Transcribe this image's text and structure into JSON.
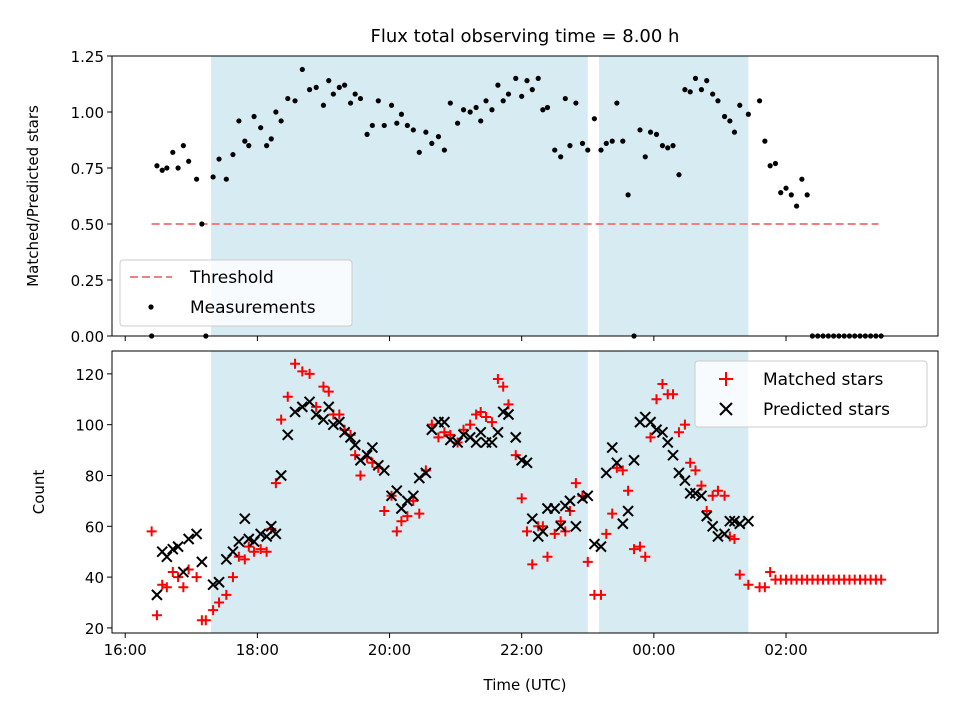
{
  "chart_data": [
    {
      "type": "scatter",
      "title": "Flux total observing time = 8.00 h",
      "ylabel": "Matched/Predicted stars",
      "xlabel": "",
      "ylim": [
        0,
        1.25
      ],
      "y_ticks": [
        0.0,
        0.25,
        0.5,
        0.75,
        1.0,
        1.25
      ],
      "y_tick_labels": [
        "0.00",
        "0.25",
        "0.50",
        "0.75",
        "1.00",
        "1.25"
      ],
      "x_ticks": [
        "16:00",
        "18:00",
        "20:00",
        "22:00",
        "00:00",
        "02:00"
      ],
      "x_unit": "hours since 16:00 UTC",
      "xlim": [
        -0.2,
        12.3
      ],
      "grid": false,
      "legend_position": "lower-left",
      "shaded_intervals": [
        [
          1.3,
          7.0
        ],
        [
          7.17,
          9.43
        ]
      ],
      "shaded_color": "#add8e6",
      "series": [
        {
          "name": "Threshold",
          "style": "dashed-line",
          "color": "#f08080",
          "x": [
            0.4,
            11.4
          ],
          "y": [
            0.5,
            0.5
          ]
        },
        {
          "name": "Measurements",
          "style": "dot",
          "color": "#000000",
          "x": [
            0.4,
            0.48,
            0.56,
            0.63,
            0.72,
            0.8,
            0.88,
            0.96,
            1.08,
            1.16,
            1.22,
            1.33,
            1.42,
            1.53,
            1.63,
            1.72,
            1.81,
            1.87,
            1.95,
            2.05,
            2.14,
            2.21,
            2.28,
            2.36,
            2.46,
            2.57,
            2.68,
            2.79,
            2.89,
            3.0,
            3.08,
            3.15,
            3.24,
            3.32,
            3.41,
            3.48,
            3.56,
            3.66,
            3.74,
            3.83,
            3.92,
            4.03,
            4.11,
            4.18,
            4.27,
            4.36,
            4.45,
            4.55,
            4.64,
            4.74,
            4.83,
            4.92,
            5.03,
            5.12,
            5.22,
            5.31,
            5.38,
            5.46,
            5.55,
            5.64,
            5.72,
            5.8,
            5.91,
            6.0,
            6.08,
            6.16,
            6.25,
            6.32,
            6.39,
            6.5,
            6.59,
            6.66,
            6.73,
            6.82,
            6.92,
            7.0,
            7.1,
            7.2,
            7.28,
            7.37,
            7.44,
            7.53,
            7.61,
            7.7,
            7.79,
            7.87,
            7.95,
            8.04,
            8.13,
            8.21,
            8.29,
            8.38,
            8.47,
            8.55,
            8.63,
            8.72,
            8.8,
            8.89,
            8.97,
            9.07,
            9.15,
            9.22,
            9.3,
            9.43,
            9.6,
            9.68,
            9.76,
            9.84,
            9.92,
            10.0,
            10.08,
            10.16,
            10.24,
            10.32,
            10.4,
            10.48,
            10.56,
            10.64,
            10.72,
            10.8,
            10.88,
            10.96,
            11.04,
            11.12,
            11.2,
            11.28,
            11.36,
            11.44
          ],
          "y": [
            0.0,
            0.76,
            0.74,
            0.75,
            0.82,
            0.75,
            0.85,
            0.78,
            0.7,
            0.5,
            0.0,
            0.71,
            0.79,
            0.7,
            0.81,
            0.96,
            0.87,
            0.85,
            0.98,
            0.93,
            0.85,
            0.88,
            1.0,
            0.96,
            1.06,
            1.05,
            1.19,
            1.1,
            1.11,
            1.03,
            1.14,
            1.08,
            1.11,
            1.12,
            1.04,
            1.08,
            1.06,
            0.9,
            0.94,
            1.05,
            0.94,
            1.03,
            0.95,
            0.99,
            0.94,
            0.92,
            0.82,
            0.91,
            0.86,
            0.89,
            0.83,
            1.04,
            0.95,
            1.01,
            1.0,
            1.02,
            0.96,
            1.05,
            1.01,
            1.12,
            1.05,
            1.08,
            1.15,
            1.07,
            1.14,
            1.1,
            1.15,
            1.01,
            1.02,
            0.83,
            0.8,
            1.06,
            0.85,
            1.04,
            0.86,
            0.83,
            0.97,
            0.83,
            0.86,
            0.87,
            1.04,
            0.87,
            0.63,
            0.0,
            0.92,
            0.8,
            0.91,
            0.9,
            0.85,
            0.84,
            0.85,
            0.72,
            1.1,
            1.09,
            1.15,
            1.1,
            1.14,
            1.08,
            1.05,
            0.98,
            0.96,
            0.91,
            1.03,
            0.99,
            1.05,
            0.87,
            0.76,
            0.77,
            0.64,
            0.66,
            0.63,
            0.58,
            0.7,
            0.63,
            0.0,
            0.0,
            0.0,
            0.0,
            0.0,
            0.0,
            0.0,
            0.0,
            0.0,
            0.0,
            0.0,
            0.0,
            0.0,
            0.0
          ]
        }
      ]
    },
    {
      "type": "scatter",
      "title": "",
      "ylabel": "Count",
      "xlabel": "Time (UTC)",
      "ylim": [
        18,
        129
      ],
      "y_ticks": [
        20,
        40,
        60,
        80,
        100,
        120
      ],
      "y_tick_labels": [
        "20",
        "40",
        "60",
        "80",
        "100",
        "120"
      ],
      "x_ticks": [
        "16:00",
        "18:00",
        "20:00",
        "22:00",
        "00:00",
        "02:00"
      ],
      "x_unit": "hours since 16:00 UTC",
      "xlim": [
        -0.2,
        12.3
      ],
      "grid": false,
      "legend_position": "upper-right",
      "shaded_intervals": [
        [
          1.3,
          7.0
        ],
        [
          7.17,
          9.43
        ]
      ],
      "shaded_color": "#add8e6",
      "series": [
        {
          "name": "Matched stars",
          "marker": "plus",
          "color": "#ff0000",
          "x": [
            0.4,
            0.48,
            0.56,
            0.63,
            0.72,
            0.8,
            0.88,
            0.96,
            1.08,
            1.16,
            1.22,
            1.33,
            1.42,
            1.53,
            1.63,
            1.72,
            1.81,
            1.87,
            1.95,
            2.05,
            2.14,
            2.21,
            2.28,
            2.36,
            2.46,
            2.57,
            2.68,
            2.79,
            2.89,
            3.0,
            3.08,
            3.15,
            3.24,
            3.32,
            3.41,
            3.48,
            3.56,
            3.66,
            3.74,
            3.83,
            3.92,
            4.03,
            4.11,
            4.18,
            4.27,
            4.36,
            4.45,
            4.55,
            4.64,
            4.74,
            4.83,
            4.92,
            5.03,
            5.12,
            5.22,
            5.31,
            5.38,
            5.46,
            5.55,
            5.64,
            5.72,
            5.8,
            5.91,
            6.0,
            6.08,
            6.16,
            6.25,
            6.32,
            6.39,
            6.5,
            6.59,
            6.66,
            6.73,
            6.82,
            6.92,
            7.0,
            7.1,
            7.2,
            7.28,
            7.37,
            7.44,
            7.53,
            7.61,
            7.7,
            7.79,
            7.87,
            7.95,
            8.04,
            8.13,
            8.21,
            8.29,
            8.38,
            8.47,
            8.55,
            8.63,
            8.72,
            8.8,
            8.89,
            8.97,
            9.07,
            9.15,
            9.22,
            9.3,
            9.43,
            9.6,
            9.68,
            9.76,
            9.84,
            9.92,
            10.0,
            10.08,
            10.16,
            10.24,
            10.32,
            10.4,
            10.48,
            10.56,
            10.64,
            10.72,
            10.8,
            10.88,
            10.96,
            11.04,
            11.12,
            11.2,
            11.28,
            11.36,
            11.44
          ],
          "y": [
            58,
            25,
            37,
            36,
            42,
            40,
            36,
            43,
            40,
            23,
            23,
            27,
            30,
            33,
            40,
            48,
            47,
            52,
            50,
            51,
            50,
            59,
            77,
            102,
            111,
            124,
            121,
            120,
            107,
            115,
            113,
            104,
            104,
            98,
            96,
            88,
            80,
            87,
            85,
            83,
            66,
            72,
            58,
            62,
            64,
            70,
            65,
            82,
            100,
            95,
            97,
            96,
            93,
            98,
            100,
            104,
            105,
            103,
            101,
            118,
            115,
            108,
            88,
            71,
            58,
            45,
            60,
            60,
            48,
            57,
            62,
            58,
            66,
            77,
            72,
            46,
            33,
            33,
            57,
            65,
            83,
            82,
            74,
            51,
            52,
            48,
            95,
            110,
            116,
            112,
            112,
            97,
            100,
            85,
            82,
            76,
            66,
            72,
            74,
            72,
            56,
            55,
            41,
            37,
            36,
            36,
            42,
            39,
            39,
            39,
            39,
            39,
            39,
            39,
            39,
            39,
            39,
            39,
            39,
            39,
            39,
            39,
            39,
            39,
            39,
            39,
            39,
            39
          ]
        },
        {
          "name": "Predicted stars",
          "marker": "x",
          "color": "#000000",
          "x": [
            0.48,
            0.56,
            0.63,
            0.72,
            0.8,
            0.88,
            0.96,
            1.08,
            1.16,
            1.33,
            1.42,
            1.53,
            1.63,
            1.72,
            1.81,
            1.87,
            1.95,
            2.05,
            2.14,
            2.21,
            2.28,
            2.36,
            2.46,
            2.57,
            2.68,
            2.79,
            2.89,
            3.0,
            3.08,
            3.15,
            3.24,
            3.32,
            3.41,
            3.48,
            3.56,
            3.66,
            3.74,
            3.83,
            3.92,
            4.03,
            4.11,
            4.18,
            4.27,
            4.36,
            4.45,
            4.55,
            4.64,
            4.74,
            4.83,
            4.92,
            5.03,
            5.12,
            5.22,
            5.31,
            5.38,
            5.46,
            5.55,
            5.64,
            5.72,
            5.8,
            5.91,
            6.0,
            6.08,
            6.16,
            6.25,
            6.32,
            6.39,
            6.5,
            6.59,
            6.66,
            6.73,
            6.82,
            6.92,
            7.0,
            7.1,
            7.2,
            7.28,
            7.37,
            7.44,
            7.53,
            7.61,
            7.7,
            7.79,
            7.87,
            7.95,
            8.04,
            8.13,
            8.21,
            8.29,
            8.38,
            8.47,
            8.55,
            8.63,
            8.72,
            8.8,
            8.89,
            8.97,
            9.07,
            9.15,
            9.22,
            9.3,
            9.43
          ],
          "y": [
            33,
            50,
            48,
            51,
            52,
            42,
            55,
            57,
            46,
            37,
            38,
            47,
            50,
            54,
            63,
            55,
            54,
            57,
            56,
            60,
            57,
            80,
            96,
            105,
            107,
            109,
            104,
            102,
            107,
            100,
            101,
            97,
            95,
            92,
            86,
            88,
            91,
            84,
            82,
            72,
            74,
            67,
            70,
            72,
            79,
            81,
            98,
            101,
            101,
            94,
            93,
            96,
            95,
            93,
            97,
            93,
            93,
            97,
            105,
            104,
            95,
            86,
            85,
            63,
            56,
            58,
            67,
            67,
            60,
            68,
            70,
            60,
            71,
            72,
            53,
            52,
            81,
            91,
            85,
            61,
            66,
            86,
            101,
            103,
            101,
            98,
            97,
            93,
            88,
            81,
            78,
            73,
            73,
            72,
            64,
            60,
            56,
            57,
            62,
            62,
            61,
            62
          ]
        }
      ]
    }
  ]
}
